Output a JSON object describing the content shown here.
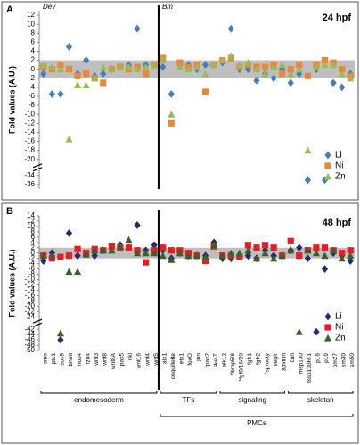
{
  "chart_data": [
    {
      "type": "scatter",
      "panel": "A",
      "annotation": "24 hpf",
      "y_label": "Fold values (A.U.)",
      "categories": [
        null,
        null,
        null,
        null,
        null,
        null,
        null,
        null,
        null,
        null,
        null,
        null,
        null,
        null,
        null,
        null,
        null,
        null,
        null,
        null,
        null,
        null,
        null,
        null,
        null,
        null,
        null,
        null,
        null,
        null,
        null,
        null,
        null,
        null,
        null,
        null,
        null
      ],
      "regions": [
        {
          "label": "Dev",
          "start": 0,
          "end": 13
        },
        {
          "label": "Bm",
          "start": 14,
          "end": 36
        }
      ],
      "region_label_position": "top",
      "ylim": [
        -37,
        13
      ],
      "axis_break": [
        -21,
        -33
      ],
      "yticks": [
        12,
        10,
        8,
        6,
        4,
        2,
        0,
        -2,
        -4,
        -6,
        -8,
        -10,
        -12,
        -14,
        -16,
        -18,
        -20,
        -34,
        -36
      ],
      "shaded_range": [
        -2,
        2
      ],
      "legend": "lower right",
      "series": [
        {
          "name": "Li",
          "color": "#4a7ebb",
          "marker": "diamond",
          "values": [
            -1,
            -5.5,
            -5.5,
            5,
            -1,
            2,
            -1.5,
            -1,
            0,
            0.5,
            1,
            9,
            1,
            1,
            0.5,
            -5.5,
            1,
            1,
            0,
            1,
            1,
            1.5,
            9,
            0,
            0,
            -2.5,
            -1,
            -2,
            0,
            -3,
            -1,
            -35,
            0,
            -35,
            -3,
            -4,
            -1
          ]
        },
        {
          "name": "Ni",
          "color": "#e8883b",
          "marker": "square",
          "values": [
            0.5,
            0,
            1,
            0,
            -1.5,
            -1,
            -2,
            -3,
            0,
            0.5,
            0,
            0.5,
            -1,
            1,
            2.5,
            -12,
            1.5,
            0.5,
            1,
            -5,
            1,
            2,
            2.5,
            0.5,
            1,
            0.5,
            0.5,
            1,
            -1,
            0,
            1,
            -1.5,
            1,
            2,
            1.5,
            0,
            -1.5
          ]
        },
        {
          "name": "Zn",
          "color": "#9bbb59",
          "marker": "triangle",
          "values": [
            1,
            0.5,
            0,
            -15.5,
            -3.5,
            -3.5,
            -2,
            0.5,
            0,
            0.5,
            0.5,
            0,
            0.5,
            1,
            2,
            -10,
            0.5,
            0,
            0.5,
            -1,
            1,
            2,
            3,
            1,
            1.5,
            0,
            -1,
            0.5,
            1,
            -1,
            0,
            -18,
            0.5,
            1,
            1,
            -1,
            -2
          ]
        }
      ]
    },
    {
      "type": "scatter",
      "panel": "B",
      "annotation": "48 hpf",
      "y_label": "Fold values (A.U.)",
      "categories": [
        "smo",
        "ptc1",
        "sox9",
        "bhmt",
        "hox4",
        "fzd4",
        "wnt3",
        "wnt8",
        "wnt8A",
        "pax5",
        "nkl",
        "wnt16",
        "wnt4",
        "wnt5",
        "alx1",
        "coquillette",
        "ets1",
        "foxO",
        "jun",
        "*pax2",
        "ske-T",
        "alk12",
        "*bmp5/8",
        "*fgf8/16/20",
        "fgfr1",
        "fgfr2",
        "*sprouty",
        "vegfr",
        "advillin",
        "can",
        "msp130",
        "msp130R-1",
        "p16",
        "p19",
        "pm27",
        "sm30",
        "sm50"
      ],
      "regions": [
        {
          "label": "endomesoderm",
          "start": 0,
          "end": 13
        },
        {
          "label": "PMCs",
          "start": 14,
          "end": 36,
          "subgroups": [
            {
              "label": "TFs",
              "start": 14,
              "end": 20
            },
            {
              "label": "signaling",
              "start": 21,
              "end": 28
            },
            {
              "label": "skeleton",
              "start": 29,
              "end": 36
            }
          ]
        }
      ],
      "region_label_position": "bottom",
      "ylim": [
        -50,
        14
      ],
      "axis_break": [
        -25,
        -41
      ],
      "yticks": [
        14,
        12,
        10,
        8,
        6,
        4,
        2,
        0,
        -2,
        -4,
        -6,
        -8,
        -10,
        -12,
        -14,
        -16,
        -18,
        -20,
        -22,
        -24,
        -42,
        -44,
        -46,
        -48,
        -50
      ],
      "shaded_range": [
        -2,
        2
      ],
      "legend": "lower right",
      "series": [
        {
          "name": "Li",
          "color": "#1f2d6b",
          "marker": "diamond",
          "values": [
            -3,
            0,
            -46,
            7.5,
            -1,
            -0.5,
            -1,
            1,
            2,
            3,
            2,
            10.5,
            1,
            3,
            1,
            -2,
            0,
            -1,
            -1,
            -1,
            4,
            -2,
            -2,
            -1,
            -1,
            -2,
            1,
            -1,
            -1,
            1,
            2,
            -2,
            -43,
            -6,
            0,
            -1,
            -3
          ]
        },
        {
          "name": "Ni",
          "color": "#e31e24",
          "marker": "square",
          "values": [
            -1,
            -2,
            -1.5,
            -1,
            1.5,
            0,
            1.5,
            1,
            2.5,
            2,
            2,
            1,
            -3.5,
            1,
            2,
            1,
            1,
            0,
            -1,
            -3,
            2.5,
            -1,
            -1,
            -1.5,
            3,
            2,
            3,
            2,
            -1,
            4.5,
            -1,
            1,
            2,
            2,
            1,
            0,
            1
          ]
        },
        {
          "name": "Zn",
          "color": "#3d5f2a",
          "marker": "triangle",
          "values": [
            -1,
            -1,
            -43.5,
            -7,
            -7,
            -0.5,
            1,
            1,
            1,
            2.5,
            5,
            0,
            0,
            0,
            -1,
            -2.5,
            0,
            -1,
            -1,
            -1.5,
            3,
            -1,
            0,
            0,
            1,
            -2,
            0,
            -2,
            -1,
            1,
            -43,
            1,
            0,
            -1,
            1,
            -2,
            -1
          ]
        }
      ]
    }
  ]
}
